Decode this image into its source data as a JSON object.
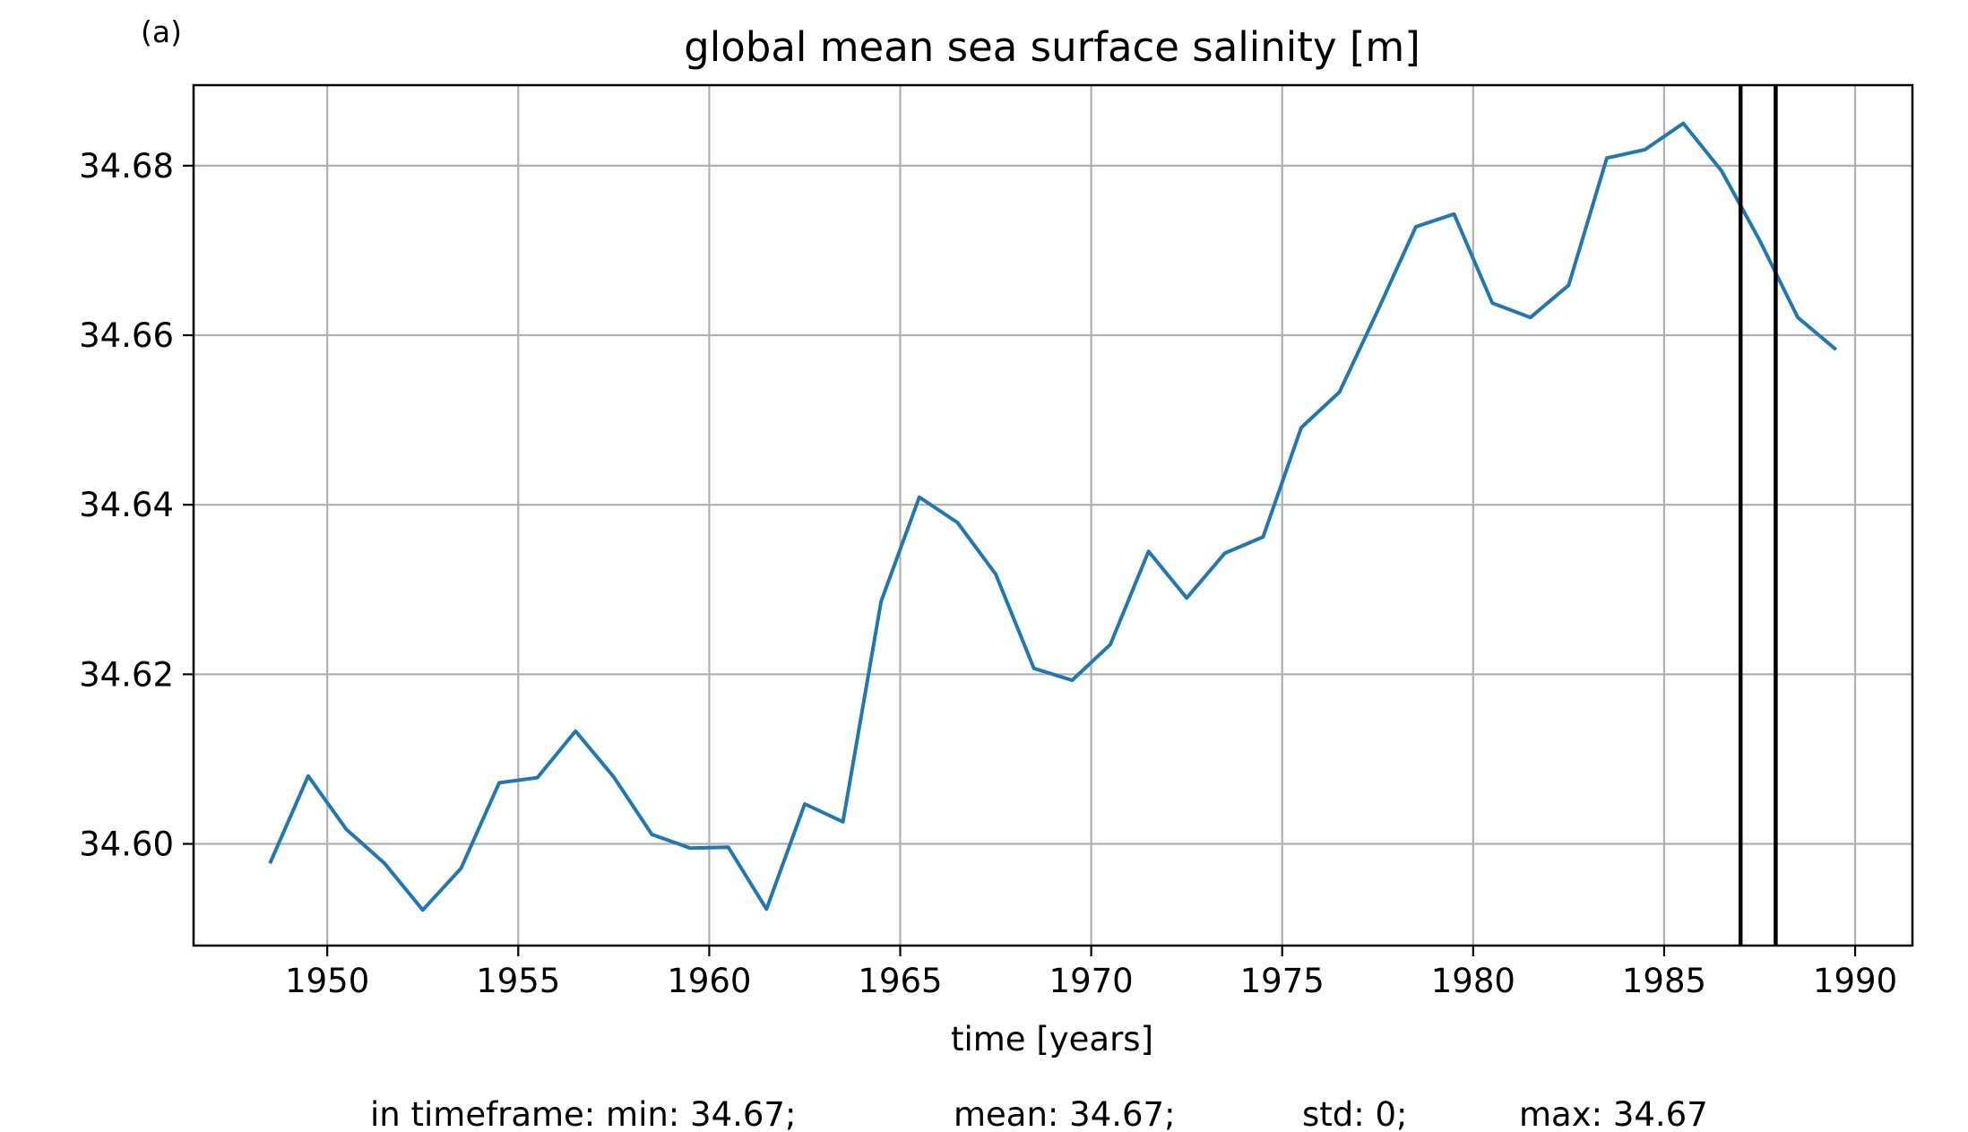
{
  "panel_label": "(a)",
  "stats": {
    "min": "in timeframe: min: 34.67;",
    "mean": "mean: 34.67;",
    "std": "std: 0;",
    "max": "max: 34.67"
  },
  "colors": {
    "series": "#1f77b4",
    "marker_lines": "#000000",
    "grid": "#b0b0b0"
  },
  "chart_data": {
    "type": "line",
    "title": "global mean sea surface salinity [m]",
    "xlabel": "time [years]",
    "ylabel": "",
    "xlim": [
      1946.5,
      1991.5
    ],
    "ylim": [
      34.588,
      34.6895
    ],
    "grid": true,
    "x_ticks": [
      1950,
      1955,
      1960,
      1965,
      1970,
      1975,
      1980,
      1985,
      1990
    ],
    "x_tick_labels": [
      "1950",
      "1955",
      "1960",
      "1965",
      "1970",
      "1975",
      "1980",
      "1985",
      "1990"
    ],
    "y_ticks": [
      34.6,
      34.62,
      34.64,
      34.66,
      34.68
    ],
    "y_tick_labels": [
      "34.60",
      "34.62",
      "34.64",
      "34.66",
      "34.68"
    ],
    "series": [
      {
        "x": [
          1948.5,
          1949.5,
          1950.5,
          1951.5,
          1952.5,
          1953.5,
          1954.5,
          1955.5,
          1956.5,
          1957.5,
          1958.5,
          1959.5,
          1960.5,
          1961.5,
          1962.5,
          1963.5,
          1964.5,
          1965.5,
          1966.5,
          1967.5,
          1968.5,
          1969.5,
          1970.5,
          1971.5,
          1972.5,
          1973.5,
          1974.5,
          1975.5,
          1976.5,
          1977.5,
          1978.5,
          1979.5,
          1980.5,
          1981.5,
          1982.5,
          1983.5,
          1984.5,
          1985.5,
          1986.5,
          1987.5,
          1988.5,
          1989.5
        ],
        "y": [
          34.5977,
          34.608,
          34.6017,
          34.5977,
          34.5922,
          34.5971,
          34.6072,
          34.6078,
          34.6133,
          34.6079,
          34.6011,
          34.5995,
          34.5996,
          34.5923,
          34.6047,
          34.6026,
          34.6286,
          34.6409,
          34.6379,
          34.6318,
          34.6207,
          34.6193,
          34.6235,
          34.6345,
          34.629,
          34.6343,
          34.6362,
          34.6491,
          34.6533,
          34.6629,
          34.6728,
          34.6743,
          34.6638,
          34.6621,
          34.6659,
          34.6809,
          34.6819,
          34.685,
          34.6794,
          34.6712,
          34.6621,
          34.6583
        ]
      }
    ],
    "vertical_lines": [
      1987.0,
      1987.92
    ]
  }
}
